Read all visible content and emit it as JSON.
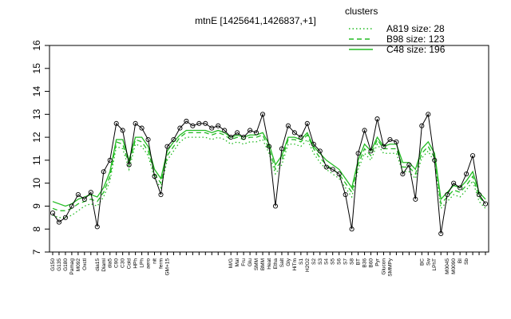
{
  "chart_data": {
    "type": "line",
    "title": "mtnE [1425641,1426837,+1]",
    "categories": [
      "G150",
      "G135",
      "G180",
      "Pamag",
      "M092",
      "Oxctl",
      null,
      "dia15",
      "Diaml",
      "dia5",
      "C90",
      "C30",
      "Cold",
      "HPh",
      "LPh",
      "aero",
      "nit",
      "ferm",
      "GM+15",
      null,
      null,
      null,
      null,
      null,
      null,
      null,
      null,
      null,
      "M/G",
      "Mal",
      "Fru",
      "Glu",
      "SMM",
      "BMM",
      "Heat",
      "Etha",
      "Salt",
      "Gly",
      "HiTm",
      "S1",
      "H2O2",
      "S2",
      "S3",
      "S4",
      "S5",
      "S6",
      "S7",
      "S8",
      "BT",
      "B36",
      "B60",
      "Pyr",
      "Glucon",
      "SMMPy",
      null,
      null,
      null,
      null,
      "BC",
      "Sw",
      "LPhT",
      null,
      "M0045",
      "M0090",
      "BI",
      "Sb",
      null,
      null,
      null
    ],
    "values": [
      8.7,
      8.3,
      8.5,
      9.0,
      9.5,
      9.3,
      9.6,
      8.1,
      10.5,
      11.0,
      12.6,
      12.3,
      10.8,
      12.6,
      12.4,
      11.9,
      10.3,
      9.5,
      11.6,
      11.9,
      12.4,
      12.7,
      12.5,
      12.6,
      12.6,
      12.4,
      12.5,
      12.3,
      12.0,
      12.2,
      12.0,
      12.3,
      12.2,
      13.0,
      11.6,
      9.0,
      11.5,
      12.5,
      12.2,
      12.0,
      12.6,
      11.7,
      11.4,
      10.7,
      10.6,
      10.4,
      9.5,
      8.0,
      11.3,
      12.3,
      11.4,
      12.8,
      11.6,
      11.9,
      11.8,
      10.4,
      10.8,
      9.3,
      12.5,
      13.0,
      11.0,
      7.8,
      9.5,
      10.0,
      9.8,
      10.4,
      11.2,
      9.5,
      9.1
    ],
    "color": "#000000",
    "legend_title": "clusters",
    "series": [
      {
        "name": "A819 size: 28",
        "color": "#22bb22",
        "dash": "dotted",
        "values": [
          8.6,
          8.5,
          8.5,
          8.6,
          8.8,
          9.0,
          9.1,
          9.0,
          9.4,
          10.1,
          11.6,
          11.5,
          10.6,
          11.7,
          11.6,
          11.2,
          10.2,
          9.8,
          11.0,
          11.4,
          11.8,
          12.0,
          12.0,
          12.0,
          12.0,
          11.9,
          12.0,
          11.9,
          11.7,
          11.8,
          11.7,
          11.8,
          11.8,
          11.9,
          11.3,
          10.4,
          10.8,
          11.7,
          11.7,
          11.6,
          11.9,
          11.3,
          10.9,
          10.6,
          10.4,
          10.2,
          9.8,
          9.4,
          10.6,
          11.3,
          11.0,
          11.7,
          11.3,
          11.3,
          11.3,
          10.5,
          10.5,
          10.2,
          11.1,
          11.4,
          10.9,
          8.9,
          9.2,
          9.5,
          9.4,
          9.7,
          10.1,
          9.2,
          8.9
        ]
      },
      {
        "name": "B98 size: 123",
        "color": "#22bb22",
        "dash": "dashed",
        "values": [
          8.9,
          8.8,
          8.8,
          8.9,
          9.1,
          9.2,
          9.3,
          9.2,
          9.6,
          10.3,
          11.8,
          11.7,
          10.8,
          11.9,
          11.8,
          11.4,
          10.4,
          10.0,
          11.2,
          11.6,
          12.0,
          12.2,
          12.2,
          12.2,
          12.2,
          12.1,
          12.2,
          12.1,
          11.9,
          12.0,
          11.9,
          12.0,
          12.0,
          12.1,
          11.5,
          10.6,
          11.0,
          11.9,
          11.9,
          11.8,
          12.1,
          11.5,
          11.1,
          10.8,
          10.6,
          10.4,
          10.0,
          9.6,
          10.8,
          11.5,
          11.2,
          11.9,
          11.5,
          11.5,
          11.5,
          10.7,
          10.7,
          10.4,
          11.3,
          11.6,
          11.1,
          9.1,
          9.4,
          9.7,
          9.6,
          9.9,
          10.3,
          9.4,
          9.1
        ]
      },
      {
        "name": "C48 size: 196",
        "color": "#22bb22",
        "dash": "solid",
        "values": [
          9.2,
          9.1,
          9.0,
          9.1,
          9.3,
          9.4,
          9.5,
          9.4,
          9.8,
          10.5,
          11.9,
          11.9,
          11.0,
          12.0,
          12.0,
          11.6,
          10.6,
          10.2,
          11.4,
          11.8,
          12.1,
          12.3,
          12.3,
          12.3,
          12.3,
          12.2,
          12.3,
          12.2,
          12.0,
          12.1,
          12.0,
          12.1,
          12.1,
          12.2,
          11.7,
          10.8,
          11.2,
          12.0,
          12.0,
          11.9,
          12.2,
          11.6,
          11.3,
          11.0,
          10.8,
          10.6,
          10.2,
          9.8,
          11.0,
          11.7,
          11.4,
          12.0,
          11.6,
          11.7,
          11.7,
          10.9,
          10.9,
          10.6,
          11.5,
          11.8,
          11.3,
          9.3,
          9.6,
          9.9,
          9.8,
          10.1,
          10.5,
          9.6,
          9.3
        ]
      }
    ],
    "ylim": [
      7,
      16
    ],
    "yticks": [
      7,
      8,
      9,
      10,
      11,
      12,
      13,
      14,
      15,
      16
    ]
  }
}
